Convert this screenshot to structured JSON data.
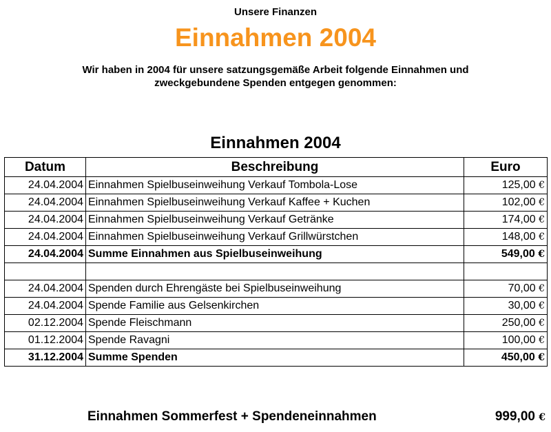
{
  "header": {
    "kicker": "Unsere Finanzen",
    "title": "Einnahmen 2004",
    "intro_line1": "Wir haben in 2004 für unsere satzungsgemäße Arbeit folgende Einnahmen und",
    "intro_line2": "zweckgebundene Spenden entgegen genommen:"
  },
  "colors": {
    "title": "#f7941d"
  },
  "table": {
    "title": "Einnahmen 2004",
    "columns": [
      "Datum",
      "Beschreibung",
      "Euro"
    ],
    "rows": [
      {
        "date": "24.04.2004",
        "description": "Einnahmen Spielbuseinweihung Verkauf Tombola-Lose",
        "amount": "125,00 €"
      },
      {
        "date": "24.04.2004",
        "description": "Einnahmen Spielbuseinweihung Verkauf Kaffee + Kuchen",
        "amount": "102,00 €"
      },
      {
        "date": "24.04.2004",
        "description": "Einnahmen Spielbuseinweihung Verkauf Getränke",
        "amount": "174,00 €"
      },
      {
        "date": "24.04.2004",
        "description": "Einnahmen Spielbuseinweihung Verkauf Grillwürstchen",
        "amount": "148,00 €"
      },
      {
        "date": "24.04.2004",
        "description": "Summe Einnahmen aus Spielbuseinweihung",
        "amount": "549,00 €",
        "sum": true
      },
      {
        "date": "",
        "description": "",
        "amount": "",
        "empty": true
      },
      {
        "date": "24.04.2004",
        "description": "Spenden durch Ehrengäste bei Spielbuseinweihung",
        "amount": "70,00 €"
      },
      {
        "date": "24.04.2004",
        "description": "Spende Familie aus Gelsenkirchen",
        "amount": "30,00 €"
      },
      {
        "date": "02.12.2004",
        "description": "Spende Fleischmann",
        "amount": "250,00 €"
      },
      {
        "date": "01.12.2004",
        "description": "Spende Ravagni",
        "amount": "100,00 €"
      },
      {
        "date": "31.12.2004",
        "description": "Summe Spenden",
        "amount": "450,00 €",
        "sum": true
      }
    ]
  },
  "total": {
    "label": "Einnahmen Sommerfest + Spendeneinnahmen",
    "value": "999,00 €"
  }
}
